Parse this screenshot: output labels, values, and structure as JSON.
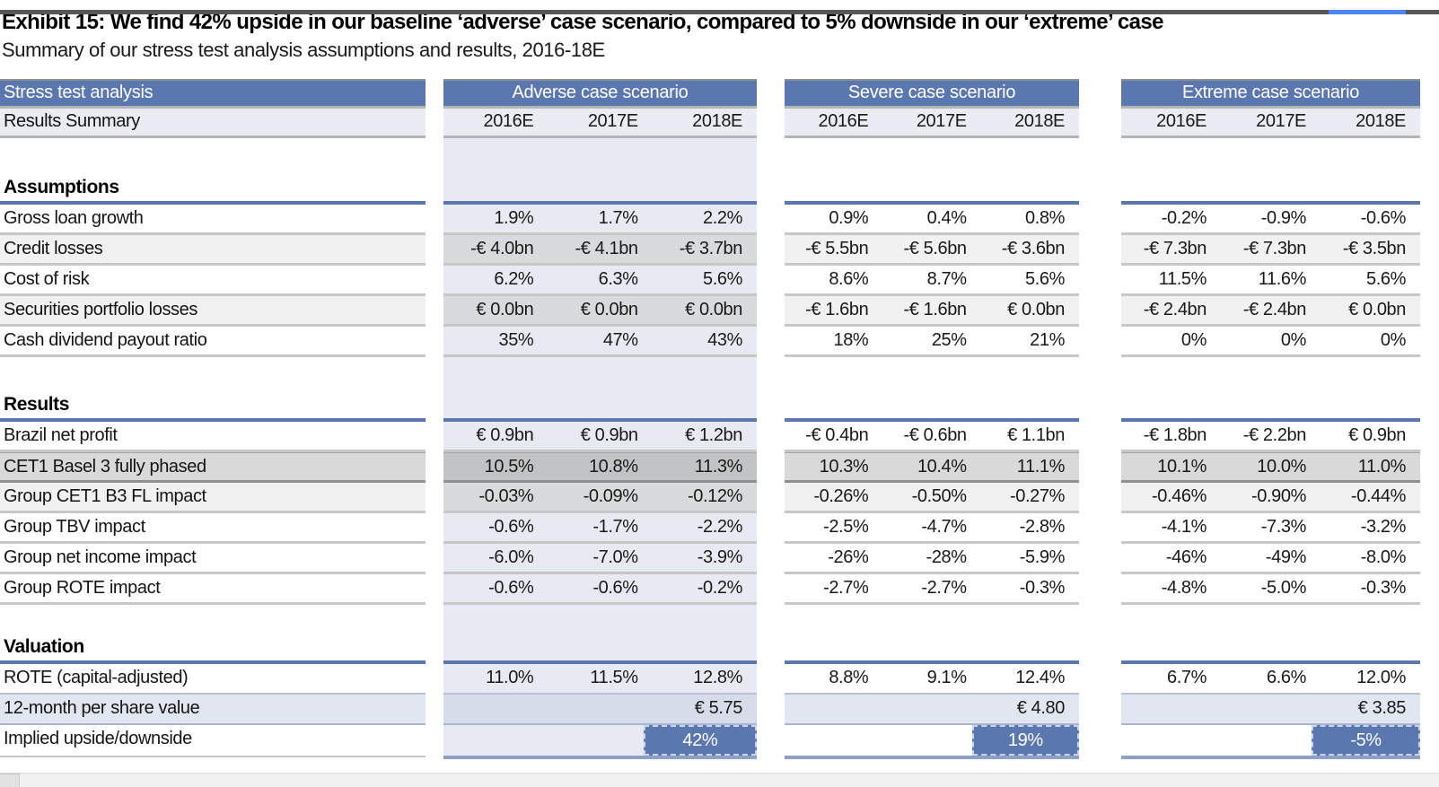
{
  "header": {
    "title": "Exhibit 15: We find 42% upside in our baseline ‘adverse’ case scenario, compared to 5% downside in our ‘extreme’ case",
    "subtitle": "Summary of our stress test analysis assumptions and results, 2016-18E"
  },
  "table": {
    "corner_header": "Stress test analysis",
    "corner_subheader": "Results Summary",
    "scenarios": [
      {
        "name": "Adverse case scenario",
        "years": [
          "2016E",
          "2017E",
          "2018E"
        ]
      },
      {
        "name": "Severe case scenario",
        "years": [
          "2016E",
          "2017E",
          "2018E"
        ]
      },
      {
        "name": "Extreme case scenario",
        "years": [
          "2016E",
          "2017E",
          "2018E"
        ]
      }
    ],
    "sections": [
      {
        "heading": "Assumptions",
        "rows": [
          {
            "label": "Gross loan growth",
            "adverse": [
              "1.9%",
              "1.7%",
              "2.2%"
            ],
            "severe": [
              "0.9%",
              "0.4%",
              "0.8%"
            ],
            "extreme": [
              "-0.2%",
              "-0.9%",
              "-0.6%"
            ]
          },
          {
            "label": "Credit losses",
            "adverse": [
              "-€ 4.0bn",
              "-€ 4.1bn",
              "-€ 3.7bn"
            ],
            "severe": [
              "-€ 5.5bn",
              "-€ 5.6bn",
              "-€ 3.6bn"
            ],
            "extreme": [
              "-€ 7.3bn",
              "-€ 7.3bn",
              "-€ 3.5bn"
            ]
          },
          {
            "label": "Cost of risk",
            "adverse": [
              "6.2%",
              "6.3%",
              "5.6%"
            ],
            "severe": [
              "8.6%",
              "8.7%",
              "5.6%"
            ],
            "extreme": [
              "11.5%",
              "11.6%",
              "5.6%"
            ]
          },
          {
            "label": "Securities portfolio losses",
            "adverse": [
              "€ 0.0bn",
              "€ 0.0bn",
              "€ 0.0bn"
            ],
            "severe": [
              "-€ 1.6bn",
              "-€ 1.6bn",
              "€ 0.0bn"
            ],
            "extreme": [
              "-€ 2.4bn",
              "-€ 2.4bn",
              "€ 0.0bn"
            ]
          },
          {
            "label": "Cash dividend payout ratio",
            "adverse": [
              "35%",
              "47%",
              "43%"
            ],
            "severe": [
              "18%",
              "25%",
              "21%"
            ],
            "extreme": [
              "0%",
              "0%",
              "0%"
            ]
          }
        ]
      },
      {
        "heading": "Results",
        "rows": [
          {
            "label": "Brazil net profit",
            "adverse": [
              "€ 0.9bn",
              "€ 0.9bn",
              "€ 1.2bn"
            ],
            "severe": [
              "-€ 0.4bn",
              "-€ 0.6bn",
              "€ 1.1bn"
            ],
            "extreme": [
              "-€ 1.8bn",
              "-€ 2.2bn",
              "€ 0.9bn"
            ]
          },
          {
            "label": "CET1 Basel 3 fully phased",
            "adverse": [
              "10.5%",
              "10.8%",
              "11.3%"
            ],
            "severe": [
              "10.3%",
              "10.4%",
              "11.1%"
            ],
            "extreme": [
              "10.1%",
              "10.0%",
              "11.0%"
            ]
          },
          {
            "label": "Group CET1 B3 FL impact",
            "adverse": [
              "-0.03%",
              "-0.09%",
              "-0.12%"
            ],
            "severe": [
              "-0.26%",
              "-0.50%",
              "-0.27%"
            ],
            "extreme": [
              "-0.46%",
              "-0.90%",
              "-0.44%"
            ]
          },
          {
            "label": "Group TBV impact",
            "adverse": [
              "-0.6%",
              "-1.7%",
              "-2.2%"
            ],
            "severe": [
              "-2.5%",
              "-4.7%",
              "-2.8%"
            ],
            "extreme": [
              "-4.1%",
              "-7.3%",
              "-3.2%"
            ]
          },
          {
            "label": "Group net income impact",
            "adverse": [
              "-6.0%",
              "-7.0%",
              "-3.9%"
            ],
            "severe": [
              "-26%",
              "-28%",
              "-5.9%"
            ],
            "extreme": [
              "-46%",
              "-49%",
              "-8.0%"
            ]
          },
          {
            "label": "Group ROTE impact",
            "adverse": [
              "-0.6%",
              "-0.6%",
              "-0.2%"
            ],
            "severe": [
              "-2.7%",
              "-2.7%",
              "-0.3%"
            ],
            "extreme": [
              "-4.8%",
              "-5.0%",
              "-0.3%"
            ]
          }
        ]
      },
      {
        "heading": "Valuation",
        "rows": [
          {
            "label": "ROTE (capital-adjusted)",
            "adverse": [
              "11.0%",
              "11.5%",
              "12.8%"
            ],
            "severe": [
              "8.8%",
              "9.1%",
              "12.4%"
            ],
            "extreme": [
              "6.7%",
              "6.6%",
              "12.0%"
            ]
          },
          {
            "label": "12-month per share value",
            "adverse": [
              "",
              "",
              "€ 5.75"
            ],
            "severe": [
              "",
              "",
              "€ 4.80"
            ],
            "extreme": [
              "",
              "",
              "€ 3.85"
            ]
          },
          {
            "label": "Implied upside/downside",
            "adverse": [
              "",
              "",
              "42%"
            ],
            "severe": [
              "",
              "",
              "19%"
            ],
            "extreme": [
              "",
              "",
              "-5%"
            ]
          }
        ]
      }
    ]
  },
  "colors": {
    "header_blue": "#5b77b0",
    "highlight_blue": "#5b77b0",
    "adverse_tint": "#e7eaf3",
    "shaded_row_gray": "#f1f1f1",
    "cet1_row_gray": "#d9d9d9",
    "per_share_row_blue": "#e2e6f1",
    "topbar_gray": "#58585a",
    "topbar_accent_blue": "#4a86f5"
  }
}
